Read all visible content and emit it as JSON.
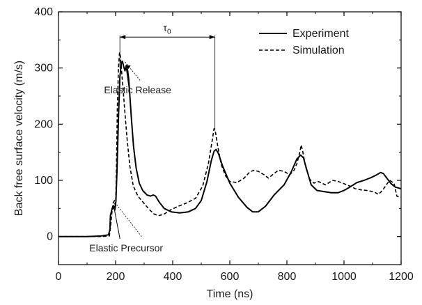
{
  "chart_data": {
    "type": "line",
    "xlabel": "Time (ns)",
    "ylabel": "Back free surface velocity (m/s)",
    "xlim": [
      0,
      1200
    ],
    "ylim": [
      -50,
      400
    ],
    "xticks": [
      0,
      200,
      400,
      600,
      800,
      1000,
      1200
    ],
    "yticks": [
      0,
      100,
      200,
      300,
      400
    ],
    "grid": false,
    "legend_position": "top-right",
    "series": [
      {
        "name": "Experiment",
        "style": "solid",
        "color": "#000000",
        "points": [
          [
            0,
            0
          ],
          [
            100,
            0
          ],
          [
            150,
            1
          ],
          [
            175,
            3
          ],
          [
            180,
            12
          ],
          [
            182,
            38
          ],
          [
            188,
            50
          ],
          [
            192,
            55
          ],
          [
            197,
            47
          ],
          [
            201,
            62
          ],
          [
            205,
            120
          ],
          [
            210,
            210
          ],
          [
            215,
            285
          ],
          [
            220,
            308
          ],
          [
            224,
            312
          ],
          [
            228,
            303
          ],
          [
            233,
            295
          ],
          [
            238,
            305
          ],
          [
            242,
            296
          ],
          [
            246,
            280
          ],
          [
            250,
            250
          ],
          [
            256,
            205
          ],
          [
            263,
            160
          ],
          [
            272,
            122
          ],
          [
            283,
            95
          ],
          [
            295,
            82
          ],
          [
            310,
            74
          ],
          [
            322,
            72
          ],
          [
            332,
            74
          ],
          [
            340,
            72
          ],
          [
            352,
            62
          ],
          [
            370,
            50
          ],
          [
            395,
            44
          ],
          [
            425,
            42
          ],
          [
            455,
            44
          ],
          [
            480,
            50
          ],
          [
            500,
            64
          ],
          [
            520,
            98
          ],
          [
            535,
            135
          ],
          [
            545,
            152
          ],
          [
            552,
            155
          ],
          [
            560,
            148
          ],
          [
            575,
            125
          ],
          [
            600,
            95
          ],
          [
            630,
            70
          ],
          [
            660,
            52
          ],
          [
            680,
            44
          ],
          [
            700,
            44
          ],
          [
            725,
            54
          ],
          [
            755,
            74
          ],
          [
            790,
            92
          ],
          [
            815,
            115
          ],
          [
            835,
            138
          ],
          [
            848,
            145
          ],
          [
            858,
            140
          ],
          [
            870,
            118
          ],
          [
            885,
            92
          ],
          [
            905,
            82
          ],
          [
            930,
            80
          ],
          [
            955,
            78
          ],
          [
            980,
            78
          ],
          [
            1000,
            82
          ],
          [
            1020,
            88
          ],
          [
            1045,
            96
          ],
          [
            1070,
            100
          ],
          [
            1095,
            105
          ],
          [
            1115,
            110
          ],
          [
            1128,
            114
          ],
          [
            1138,
            112
          ],
          [
            1150,
            104
          ],
          [
            1165,
            94
          ],
          [
            1180,
            88
          ],
          [
            1200,
            85
          ]
        ]
      },
      {
        "name": "Simulation",
        "style": "dashed",
        "color": "#000000",
        "points": [
          [
            0,
            0
          ],
          [
            100,
            0
          ],
          [
            150,
            0
          ],
          [
            178,
            1
          ],
          [
            182,
            15
          ],
          [
            188,
            48
          ],
          [
            192,
            60
          ],
          [
            196,
            64
          ],
          [
            200,
            52
          ],
          [
            203,
            120
          ],
          [
            206,
            230
          ],
          [
            210,
            300
          ],
          [
            214,
            328
          ],
          [
            217,
            320
          ],
          [
            220,
            300
          ],
          [
            225,
            270
          ],
          [
            232,
            225
          ],
          [
            240,
            175
          ],
          [
            250,
            125
          ],
          [
            262,
            90
          ],
          [
            278,
            72
          ],
          [
            298,
            60
          ],
          [
            318,
            48
          ],
          [
            335,
            40
          ],
          [
            350,
            37
          ],
          [
            370,
            40
          ],
          [
            395,
            48
          ],
          [
            420,
            54
          ],
          [
            450,
            60
          ],
          [
            480,
            68
          ],
          [
            505,
            90
          ],
          [
            525,
            130
          ],
          [
            538,
            170
          ],
          [
            545,
            192
          ],
          [
            550,
            185
          ],
          [
            558,
            160
          ],
          [
            570,
            128
          ],
          [
            585,
            108
          ],
          [
            600,
            98
          ],
          [
            625,
            96
          ],
          [
            650,
            104
          ],
          [
            670,
            115
          ],
          [
            685,
            118
          ],
          [
            700,
            116
          ],
          [
            720,
            110
          ],
          [
            735,
            104
          ],
          [
            750,
            110
          ],
          [
            770,
            118
          ],
          [
            790,
            116
          ],
          [
            810,
            110
          ],
          [
            825,
            118
          ],
          [
            835,
            130
          ],
          [
            845,
            150
          ],
          [
            850,
            163
          ],
          [
            856,
            150
          ],
          [
            865,
            125
          ],
          [
            880,
            102
          ],
          [
            895,
            95
          ],
          [
            910,
            98
          ],
          [
            935,
            92
          ],
          [
            960,
            100
          ],
          [
            980,
            98
          ],
          [
            1000,
            94
          ],
          [
            1020,
            90
          ],
          [
            1040,
            85
          ],
          [
            1060,
            83
          ],
          [
            1080,
            82
          ],
          [
            1100,
            80
          ],
          [
            1110,
            78
          ],
          [
            1120,
            75
          ],
          [
            1135,
            82
          ],
          [
            1148,
            92
          ],
          [
            1160,
            100
          ],
          [
            1175,
            95
          ],
          [
            1185,
            72
          ],
          [
            1195,
            70
          ],
          [
            1200,
            70
          ]
        ]
      }
    ],
    "annotations": [
      {
        "name": "tau-span",
        "label": "τ",
        "subscript": "0",
        "x_start": 215,
        "x_end": 548,
        "y": 355
      },
      {
        "name": "elastic-release",
        "label": "Elastic Release",
        "target": [
          226,
          312
        ],
        "text_pos": [
          262,
          265
        ]
      },
      {
        "name": "elastic-precursor",
        "label": "Elastic Precursor",
        "target": [
          193,
          63
        ],
        "text_pos": [
          225,
          -14
        ]
      }
    ]
  }
}
